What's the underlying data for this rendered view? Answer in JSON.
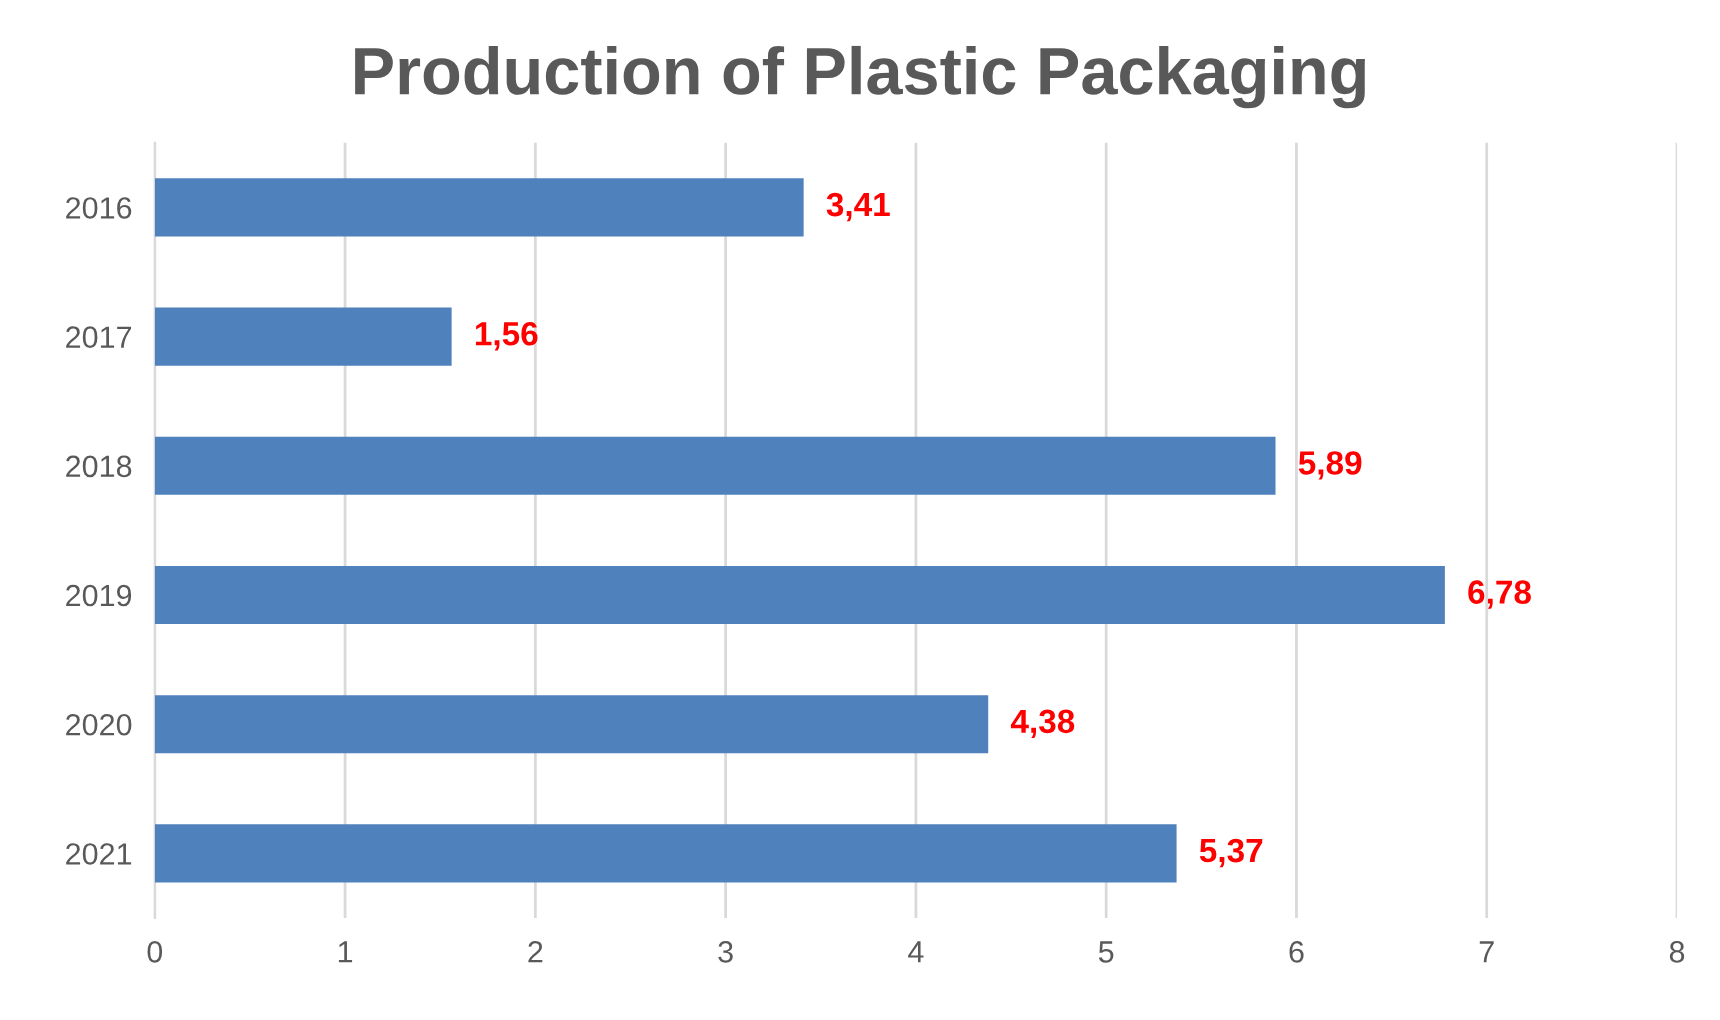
{
  "chart_data": {
    "type": "bar",
    "orientation": "horizontal",
    "title": "Production of Plastic Packaging",
    "categories": [
      "2016",
      "2017",
      "2018",
      "2019",
      "2020",
      "2021"
    ],
    "values": [
      3.41,
      1.56,
      5.89,
      6.78,
      4.38,
      5.37
    ],
    "value_labels": [
      "3,41",
      "1,56",
      "5,89",
      "6,78",
      "4,38",
      "5,37"
    ],
    "color": "#4f81bd",
    "xlim": [
      0,
      8
    ],
    "xticks": [
      0,
      1,
      2,
      3,
      4,
      5,
      6,
      7,
      8
    ],
    "grid": "x"
  }
}
